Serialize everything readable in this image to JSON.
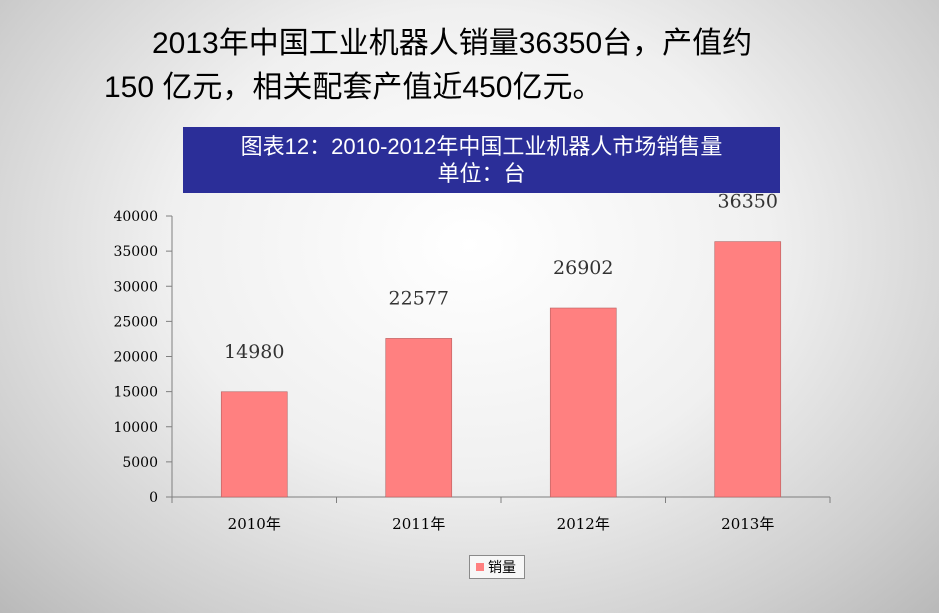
{
  "headline": {
    "line1": "2013年中国工业机器人销量36350台，产值约",
    "line2": "150 亿元，相关配套产值近450亿元。"
  },
  "chart_data": {
    "type": "bar",
    "title": "图表12：2010-2012年中国工业机器人市场销售量",
    "subtitle": "单位：台",
    "categories": [
      "2010年",
      "2011年",
      "2012年",
      "2013年"
    ],
    "series": [
      {
        "name": "销量",
        "values": [
          14980,
          22577,
          26902,
          36350
        ],
        "color": "#ff8080"
      }
    ],
    "data_labels": [
      "14980",
      "22577",
      "26902",
      "36350"
    ],
    "ylim": [
      0,
      40000
    ],
    "yticks": [
      0,
      5000,
      10000,
      15000,
      20000,
      25000,
      30000,
      35000,
      40000
    ],
    "xlabel": "",
    "ylabel": "",
    "grid": false,
    "legend": "bottom",
    "title_bg_color": "#2b2e98"
  }
}
